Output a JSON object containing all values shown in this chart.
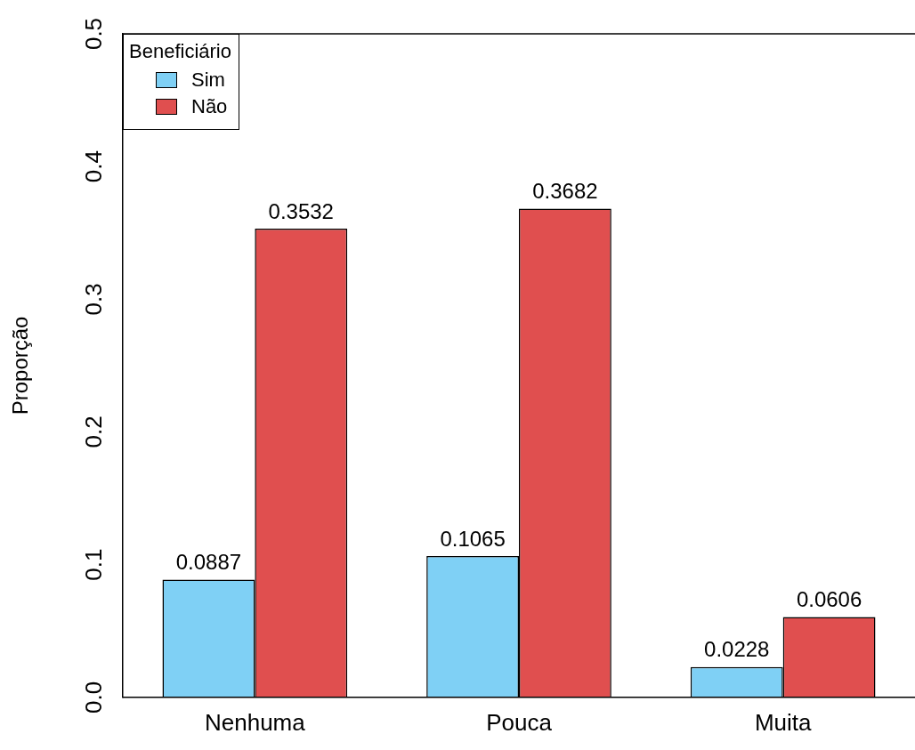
{
  "chart_data": {
    "type": "bar",
    "ylabel": "Proporção",
    "legend_title": "Beneficiário",
    "categories": [
      "Nenhuma",
      "Pouca",
      "Muita"
    ],
    "series": [
      {
        "name": "Sim",
        "color": "#7fd0f5",
        "values": [
          0.0887,
          0.1065,
          0.0228
        ]
      },
      {
        "name": "Não",
        "color": "#e04f4f",
        "values": [
          0.3532,
          0.3682,
          0.0606
        ]
      }
    ],
    "ylim": [
      0,
      0.5
    ],
    "yticks": [
      {
        "value": 0,
        "label": "0.0"
      },
      {
        "value": 0.1,
        "label": "0.1"
      },
      {
        "value": 0.2,
        "label": "0.2"
      },
      {
        "value": 0.3,
        "label": "0.3"
      },
      {
        "value": 0.4,
        "label": "0.4"
      },
      {
        "value": 0.5,
        "label": "0.5"
      }
    ],
    "grid": false,
    "legend": "top left",
    "data_labels": true
  }
}
